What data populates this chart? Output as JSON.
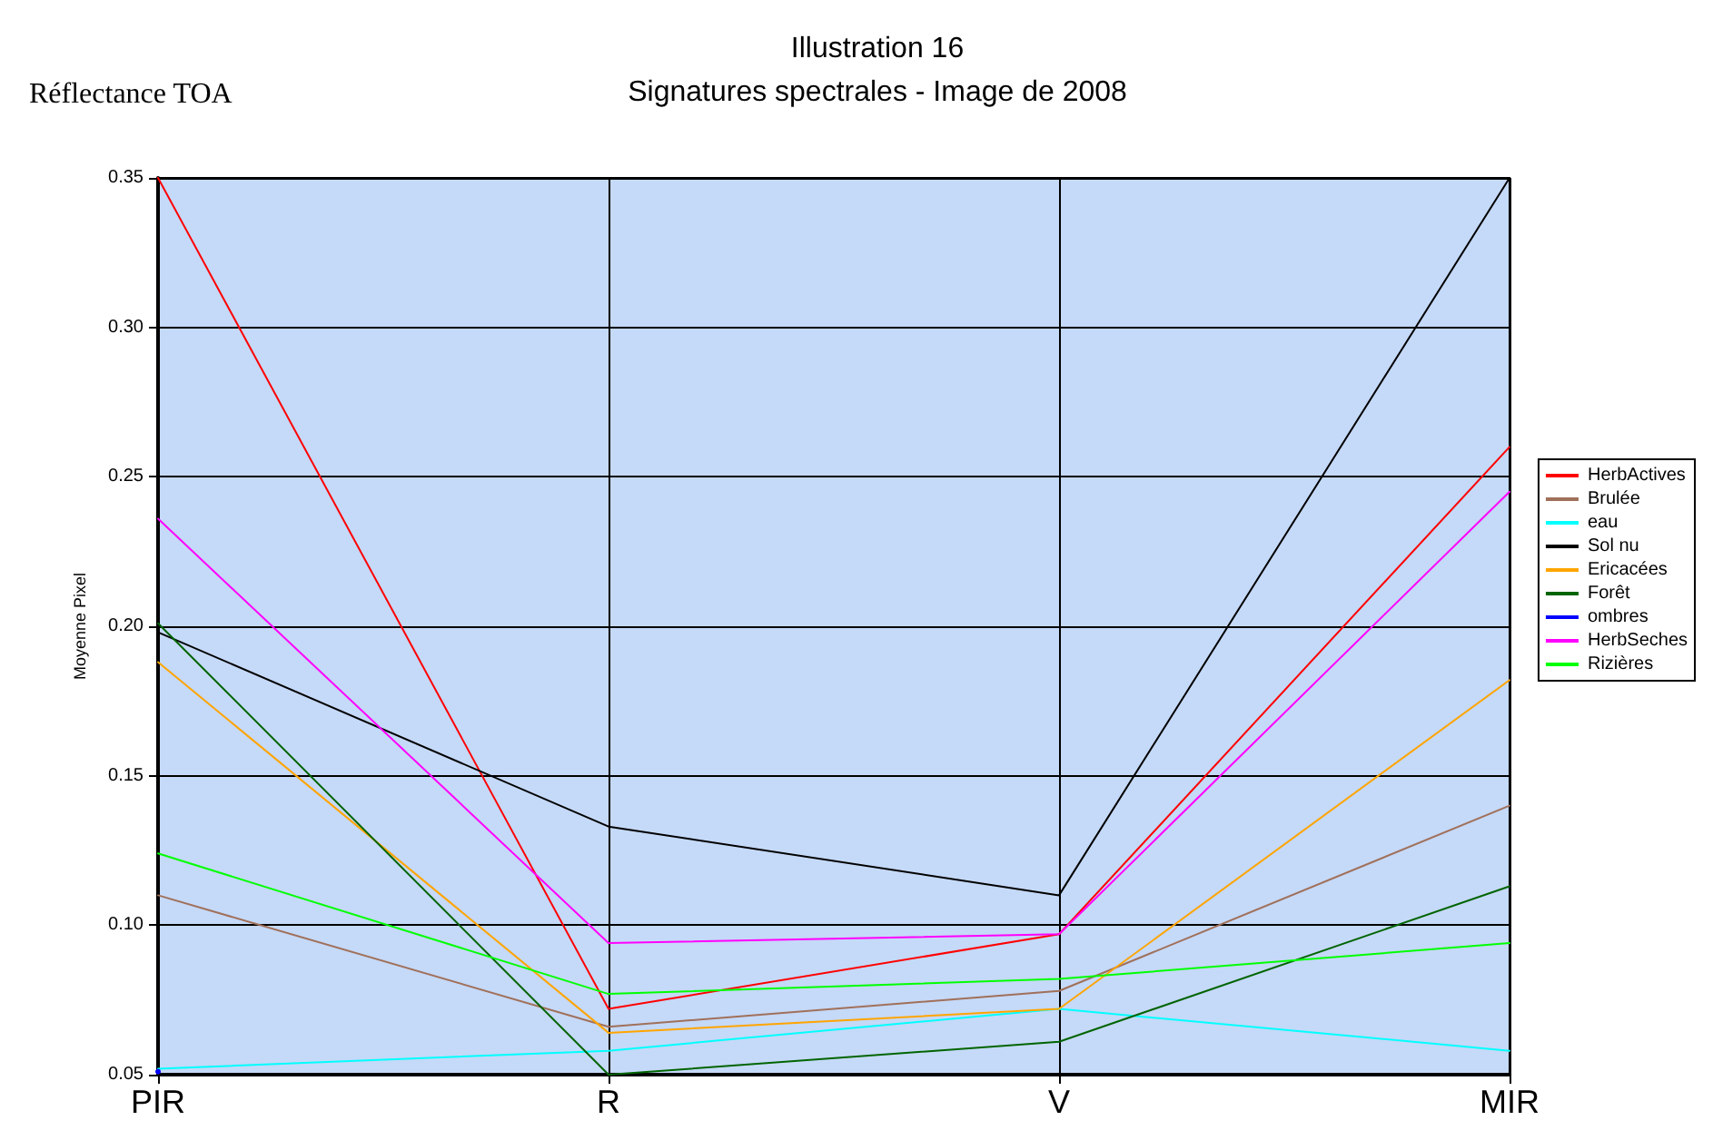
{
  "chart_data": {
    "type": "line",
    "title": "Illustration 16",
    "subtitle": "Signatures spectrales - Image de 2008",
    "ylabel": "Moyenne Pixel",
    "annotations": [
      "Réflectance TOA"
    ],
    "categories": [
      "PIR",
      "R",
      "V",
      "MIR"
    ],
    "series": [
      {
        "name": "HerbActives",
        "color": "#ff0000",
        "values": [
          0.35,
          0.072,
          0.097,
          0.26
        ]
      },
      {
        "name": "Brulée",
        "color": "#a0705a",
        "values": [
          0.11,
          0.066,
          0.078,
          0.14
        ]
      },
      {
        "name": "eau",
        "color": "#00ffff",
        "values": [
          0.052,
          0.058,
          0.072,
          0.058
        ]
      },
      {
        "name": "Sol nu",
        "color": "#000000",
        "values": [
          0.198,
          0.133,
          0.11,
          0.35
        ]
      },
      {
        "name": "Ericacées",
        "color": "#ffa500",
        "values": [
          0.188,
          0.064,
          0.072,
          0.182
        ]
      },
      {
        "name": "Forêt",
        "color": "#006400",
        "values": [
          0.201,
          0.05,
          0.061,
          0.113
        ]
      },
      {
        "name": "ombres",
        "color": "#0000ff",
        "values": [
          0.051,
          null,
          null,
          null
        ]
      },
      {
        "name": "HerbSeches",
        "color": "#ff00ff",
        "values": [
          0.236,
          0.094,
          0.097,
          0.245
        ]
      },
      {
        "name": "Rizières",
        "color": "#00ff00",
        "values": [
          0.124,
          0.077,
          0.082,
          0.094
        ]
      }
    ],
    "ylim": [
      0.05,
      0.35
    ],
    "yticks": [
      0.05,
      {
        "value": 0.1,
        "label": "0.10"
      },
      0.15,
      {
        "value": 0.2,
        "label": "0.20"
      },
      0.25,
      {
        "value": 0.3,
        "label": "0.30"
      },
      0.35
    ],
    "grid": true,
    "legend": "right",
    "marker": "none",
    "line_style": "solid"
  }
}
